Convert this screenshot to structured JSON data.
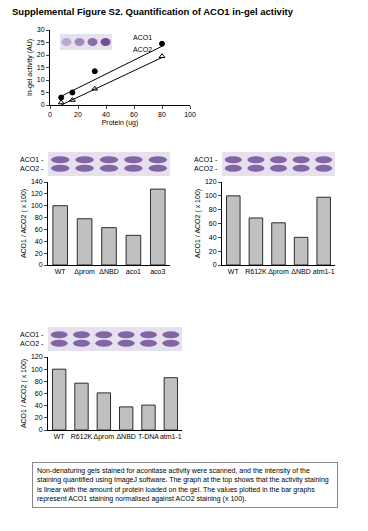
{
  "title": "Supplemental Figure S2. Quantification of ACO1 in-gel activity",
  "caption": "Non-denaturing gels stained for aconitase activity were scanned, and the intensity of the staining quantified using ImageJ software. The graph at the top shows that the activity staining is linear with the amount of protein loaded on the gel. The values plotted in the bar graphs represent ACO1 staining normalised against ACO2 staining (x 100).",
  "chart_data": [
    {
      "type": "scatter",
      "x_label": "Protein (ug)",
      "y_label": "In-gel activity (AU)",
      "xlim": [
        0,
        100
      ],
      "xticks": [
        0,
        20,
        40,
        60,
        80,
        100
      ],
      "ylim": [
        0,
        30
      ],
      "yticks": [
        0,
        5,
        10,
        15,
        20,
        25,
        30
      ],
      "grid": false,
      "series": [
        {
          "name": "ACO1",
          "type": "scatter",
          "marker": "circle",
          "color": "#000000",
          "x": [
            8,
            16,
            32,
            80
          ],
          "values": [
            3,
            5,
            13.5,
            24.5
          ]
        },
        {
          "name": "ACO2",
          "type": "scatter",
          "marker": "triangle-open",
          "color": "#000000",
          "x": [
            8,
            16,
            32,
            80
          ],
          "values": [
            1,
            2,
            6.5,
            19.5
          ]
        },
        {
          "type": "line",
          "line_style": "solid",
          "color": "#000000",
          "x": [
            8,
            80
          ],
          "values": [
            3.5,
            23.5
          ]
        },
        {
          "type": "line",
          "line_style": "solid",
          "color": "#000000",
          "x": [
            8,
            80
          ],
          "values": [
            0,
            19
          ]
        }
      ]
    },
    {
      "type": "bar",
      "y_label": "ACO1 / ACO2 ( x 100)",
      "annotations": [
        "ACO1 -",
        "ACO2 -"
      ],
      "categories": [
        "WT",
        "Δprom",
        "ΔNBD",
        "aco1",
        "aco3"
      ],
      "values": [
        100,
        78,
        63,
        50,
        128
      ],
      "color": "#c0c0c0",
      "ylim": [
        0,
        140
      ],
      "yticks": [
        0,
        20,
        40,
        60,
        80,
        100,
        120,
        140
      ],
      "grid": false
    },
    {
      "type": "bar",
      "y_label": "ACO1 / ACO2 ( x 100)",
      "annotations": [
        "ACO1 -",
        "ACO2 -"
      ],
      "categories": [
        "WT",
        "R612K",
        "Δprom",
        "ΔNBD",
        "atm1-1"
      ],
      "values": [
        100,
        68,
        61,
        40,
        98
      ],
      "color": "#c0c0c0",
      "ylim": [
        0,
        120
      ],
      "yticks": [
        0,
        20,
        40,
        60,
        80,
        100,
        120
      ],
      "grid": false
    },
    {
      "type": "bar",
      "y_label": "ACO1 / ACO2 ( x 100)",
      "annotations": [
        "ACO1 -",
        "ACO2 -"
      ],
      "categories": [
        "WT",
        "R612K",
        "Δprom",
        "ΔNBD",
        "T-DNA",
        "atm1-1"
      ],
      "values": [
        100,
        77,
        61,
        38,
        41,
        86
      ],
      "color": "#c0c0c0",
      "ylim": [
        0,
        120
      ],
      "yticks": [
        0,
        20,
        40,
        60,
        80,
        100,
        120
      ],
      "grid": false
    }
  ]
}
